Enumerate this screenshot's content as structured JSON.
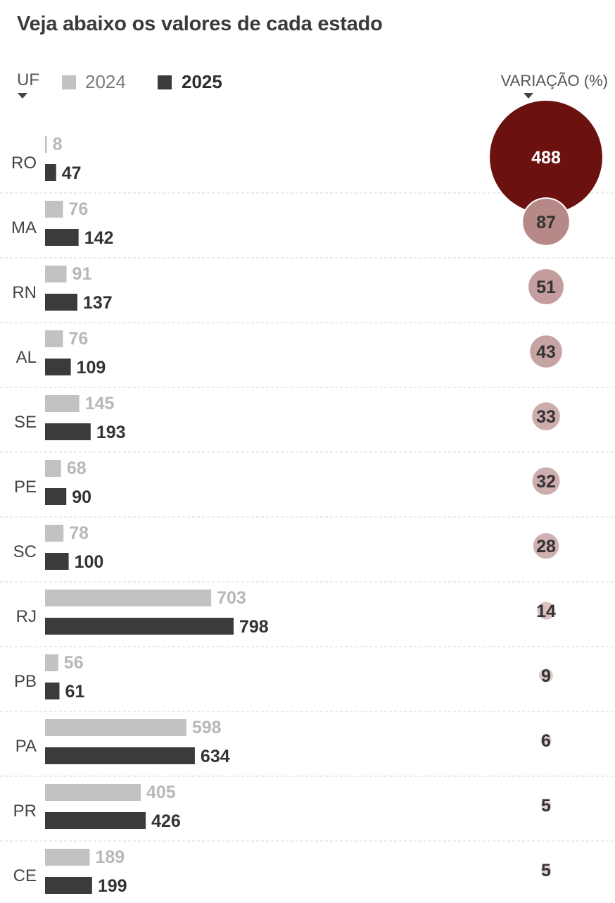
{
  "title": "Veja abaixo os valores de cada estado",
  "header": {
    "uf_label": "UF",
    "variation_label": "VARIAÇÃO (%)"
  },
  "legend": [
    {
      "label": "2024",
      "color": "#c2c2c2"
    },
    {
      "label": "2025",
      "color": "#3b3b3b"
    }
  ],
  "colors": {
    "bar_2024": "#c2c2c2",
    "bar_2025": "#3b3b3b",
    "label_2024": "#b8b8b8",
    "label_2025": "#333333",
    "bubble_max": "#6b1210",
    "bubble_min": "#f6eeee",
    "separator": "#d6d6d6"
  },
  "chart_data": {
    "type": "bar",
    "orientation": "horizontal",
    "categories": [
      "RO",
      "MA",
      "RN",
      "AL",
      "SE",
      "PE",
      "SC",
      "RJ",
      "PB",
      "PA",
      "PR",
      "CE"
    ],
    "series": [
      {
        "name": "2024",
        "values": [
          8,
          76,
          91,
          76,
          145,
          68,
          78,
          703,
          56,
          598,
          405,
          189
        ]
      },
      {
        "name": "2025",
        "values": [
          47,
          142,
          137,
          109,
          193,
          90,
          100,
          798,
          61,
          634,
          426,
          199
        ]
      }
    ],
    "variation": {
      "label": "VARIAÇÃO (%)",
      "values": [
        488,
        87,
        51,
        43,
        33,
        32,
        28,
        14,
        9,
        6,
        5,
        5
      ],
      "encoding": "bubble area"
    },
    "legend_position": "top-left",
    "grid": false
  }
}
